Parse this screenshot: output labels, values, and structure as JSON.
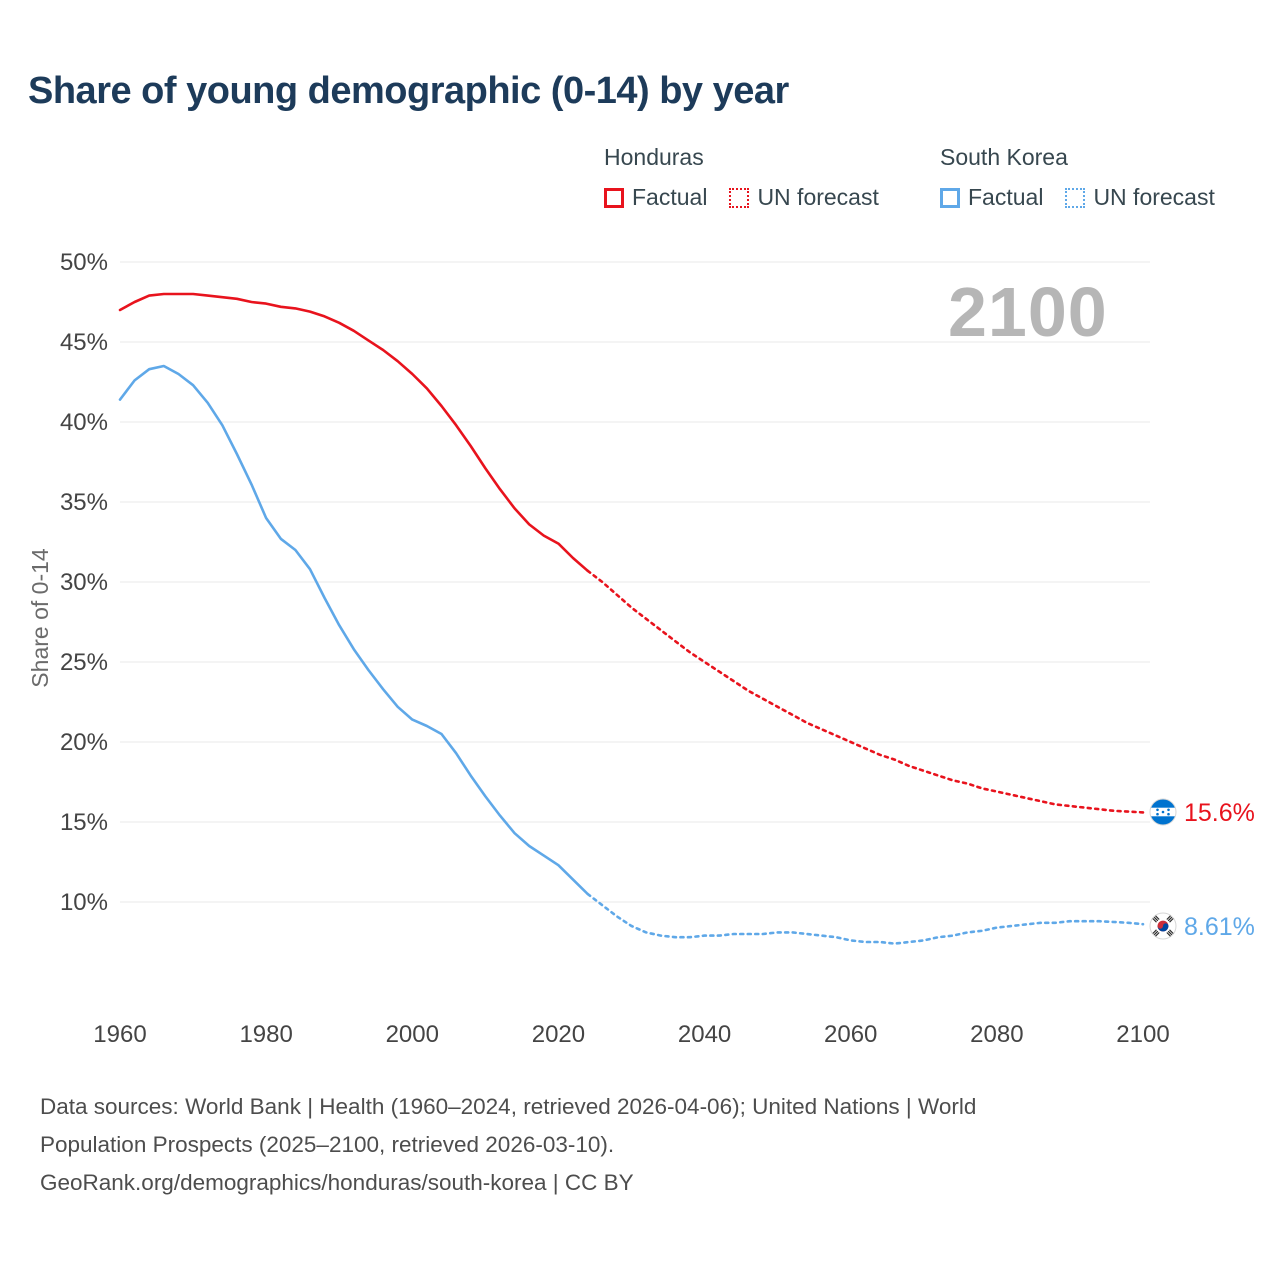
{
  "title": "Share of young demographic (0-14) by year",
  "watermark": "2100",
  "legend": {
    "groups": [
      {
        "country": "Honduras",
        "items": [
          {
            "label": "Factual",
            "style": "solid"
          },
          {
            "label": "UN forecast",
            "style": "dotted"
          }
        ]
      },
      {
        "country": "South Korea",
        "items": [
          {
            "label": "Factual",
            "style": "solid"
          },
          {
            "label": "UN forecast",
            "style": "dotted"
          }
        ]
      }
    ]
  },
  "end_labels": {
    "honduras": "15.6%",
    "south_korea": "8.61%"
  },
  "colors": {
    "honduras_red": "#e8131d",
    "south_korea_blue": "#5fa8e8",
    "title": "#1d3b5a",
    "axis_text": "#444444",
    "muted_text": "#6b6b6b",
    "grid": "#e8e8e8",
    "watermark": "#b6b6b6",
    "footer_text": "#4d4d4d"
  },
  "footer": {
    "lines": [
      "Data sources: World Bank | Health (1960–2024, retrieved 2026-04-06); United Nations | World",
      "Population Prospects (2025–2100, retrieved 2026-03-10).",
      "GeoRank.org/demographics/honduras/south-korea | CC BY"
    ]
  },
  "chart_data": {
    "type": "line",
    "title": "Share of young demographic (0-14) by year",
    "xlabel": "",
    "ylabel": "Share of 0-14",
    "grid": "horizontal",
    "legend_position": "top-right",
    "x_range": [
      1960,
      2100
    ],
    "y_range": [
      10,
      50
    ],
    "x_ticks": [
      {
        "value": 1960,
        "label": "1960"
      },
      {
        "value": 1980,
        "label": "1980"
      },
      {
        "value": 2000,
        "label": "2000"
      },
      {
        "value": 2020,
        "label": "2020"
      },
      {
        "value": 2040,
        "label": "2040"
      },
      {
        "value": 2060,
        "label": "2060"
      },
      {
        "value": 2080,
        "label": "2080"
      },
      {
        "value": 2100,
        "label": "2100"
      }
    ],
    "y_ticks": [
      {
        "value": 10,
        "label": "10%"
      },
      {
        "value": 15,
        "label": "15%"
      },
      {
        "value": 20,
        "label": "20%"
      },
      {
        "value": 25,
        "label": "25%"
      },
      {
        "value": 30,
        "label": "30%"
      },
      {
        "value": 35,
        "label": "35%"
      },
      {
        "value": 40,
        "label": "40%"
      },
      {
        "value": 45,
        "label": "45%"
      },
      {
        "value": 50,
        "label": "50%"
      }
    ],
    "series": [
      {
        "id": "honduras-factual",
        "name": "Honduras Factual",
        "country": "Honduras",
        "segment": "factual",
        "color": "#e8131d",
        "line_style": "solid",
        "points": [
          [
            1960,
            47.0
          ],
          [
            1962,
            47.5
          ],
          [
            1964,
            47.9
          ],
          [
            1966,
            48.0
          ],
          [
            1968,
            48.0
          ],
          [
            1970,
            48.0
          ],
          [
            1972,
            47.9
          ],
          [
            1974,
            47.8
          ],
          [
            1976,
            47.7
          ],
          [
            1978,
            47.5
          ],
          [
            1980,
            47.4
          ],
          [
            1982,
            47.2
          ],
          [
            1984,
            47.1
          ],
          [
            1986,
            46.9
          ],
          [
            1988,
            46.6
          ],
          [
            1990,
            46.2
          ],
          [
            1992,
            45.7
          ],
          [
            1994,
            45.1
          ],
          [
            1996,
            44.5
          ],
          [
            1998,
            43.8
          ],
          [
            2000,
            43.0
          ],
          [
            2002,
            42.1
          ],
          [
            2004,
            41.0
          ],
          [
            2006,
            39.8
          ],
          [
            2008,
            38.5
          ],
          [
            2010,
            37.1
          ],
          [
            2012,
            35.8
          ],
          [
            2014,
            34.6
          ],
          [
            2016,
            33.6
          ],
          [
            2018,
            32.9
          ],
          [
            2020,
            32.4
          ],
          [
            2022,
            31.5
          ],
          [
            2024,
            30.7
          ]
        ]
      },
      {
        "id": "honduras-forecast",
        "name": "Honduras UN forecast",
        "country": "Honduras",
        "segment": "forecast",
        "color": "#e8131d",
        "line_style": "dashed",
        "points": [
          [
            2024,
            30.7
          ],
          [
            2026,
            30.0
          ],
          [
            2028,
            29.2
          ],
          [
            2030,
            28.4
          ],
          [
            2032,
            27.7
          ],
          [
            2034,
            27.0
          ],
          [
            2036,
            26.3
          ],
          [
            2038,
            25.6
          ],
          [
            2040,
            25.0
          ],
          [
            2042,
            24.4
          ],
          [
            2044,
            23.8
          ],
          [
            2046,
            23.2
          ],
          [
            2048,
            22.7
          ],
          [
            2050,
            22.2
          ],
          [
            2052,
            21.7
          ],
          [
            2054,
            21.2
          ],
          [
            2056,
            20.8
          ],
          [
            2058,
            20.4
          ],
          [
            2060,
            20.0
          ],
          [
            2062,
            19.6
          ],
          [
            2064,
            19.2
          ],
          [
            2066,
            18.9
          ],
          [
            2068,
            18.5
          ],
          [
            2070,
            18.2
          ],
          [
            2072,
            17.9
          ],
          [
            2074,
            17.6
          ],
          [
            2076,
            17.4
          ],
          [
            2078,
            17.1
          ],
          [
            2080,
            16.9
          ],
          [
            2082,
            16.7
          ],
          [
            2084,
            16.5
          ],
          [
            2086,
            16.3
          ],
          [
            2088,
            16.1
          ],
          [
            2090,
            16.0
          ],
          [
            2092,
            15.9
          ],
          [
            2094,
            15.8
          ],
          [
            2096,
            15.7
          ],
          [
            2098,
            15.65
          ],
          [
            2100,
            15.6
          ]
        ]
      },
      {
        "id": "south-korea-factual",
        "name": "South Korea Factual",
        "country": "South Korea",
        "segment": "factual",
        "color": "#5fa8e8",
        "line_style": "solid",
        "points": [
          [
            1960,
            41.4
          ],
          [
            1962,
            42.6
          ],
          [
            1964,
            43.3
          ],
          [
            1966,
            43.5
          ],
          [
            1968,
            43.0
          ],
          [
            1970,
            42.3
          ],
          [
            1972,
            41.2
          ],
          [
            1974,
            39.8
          ],
          [
            1976,
            38.0
          ],
          [
            1978,
            36.1
          ],
          [
            1980,
            34.0
          ],
          [
            1982,
            32.7
          ],
          [
            1984,
            32.0
          ],
          [
            1986,
            30.8
          ],
          [
            1988,
            29.0
          ],
          [
            1990,
            27.3
          ],
          [
            1992,
            25.8
          ],
          [
            1994,
            24.5
          ],
          [
            1996,
            23.3
          ],
          [
            1998,
            22.2
          ],
          [
            2000,
            21.4
          ],
          [
            2002,
            21.0
          ],
          [
            2004,
            20.5
          ],
          [
            2006,
            19.3
          ],
          [
            2008,
            17.9
          ],
          [
            2010,
            16.6
          ],
          [
            2012,
            15.4
          ],
          [
            2014,
            14.3
          ],
          [
            2016,
            13.5
          ],
          [
            2018,
            12.9
          ],
          [
            2020,
            12.3
          ],
          [
            2022,
            11.4
          ],
          [
            2024,
            10.5
          ]
        ]
      },
      {
        "id": "south-korea-forecast",
        "name": "South Korea UN forecast",
        "country": "South Korea",
        "segment": "forecast",
        "color": "#5fa8e8",
        "line_style": "dashed",
        "points": [
          [
            2024,
            10.5
          ],
          [
            2026,
            9.8
          ],
          [
            2028,
            9.1
          ],
          [
            2030,
            8.5
          ],
          [
            2032,
            8.1
          ],
          [
            2034,
            7.9
          ],
          [
            2036,
            7.8
          ],
          [
            2038,
            7.8
          ],
          [
            2040,
            7.9
          ],
          [
            2042,
            7.9
          ],
          [
            2044,
            8.0
          ],
          [
            2046,
            8.0
          ],
          [
            2048,
            8.0
          ],
          [
            2050,
            8.1
          ],
          [
            2052,
            8.1
          ],
          [
            2054,
            8.0
          ],
          [
            2056,
            7.9
          ],
          [
            2058,
            7.8
          ],
          [
            2060,
            7.6
          ],
          [
            2062,
            7.5
          ],
          [
            2064,
            7.5
          ],
          [
            2066,
            7.4
          ],
          [
            2068,
            7.5
          ],
          [
            2070,
            7.6
          ],
          [
            2072,
            7.8
          ],
          [
            2074,
            7.9
          ],
          [
            2076,
            8.1
          ],
          [
            2078,
            8.2
          ],
          [
            2080,
            8.4
          ],
          [
            2082,
            8.5
          ],
          [
            2084,
            8.6
          ],
          [
            2086,
            8.7
          ],
          [
            2088,
            8.7
          ],
          [
            2090,
            8.8
          ],
          [
            2092,
            8.8
          ],
          [
            2094,
            8.8
          ],
          [
            2096,
            8.75
          ],
          [
            2098,
            8.7
          ],
          [
            2100,
            8.61
          ]
        ]
      }
    ],
    "end_annotations": [
      {
        "series": "honduras-forecast",
        "x": 2100,
        "y": 15.6,
        "label": "15.6%",
        "flag": "honduras"
      },
      {
        "series": "south-korea-forecast",
        "x": 2100,
        "y": 8.61,
        "label": "8.61%",
        "flag": "south-korea"
      }
    ]
  }
}
